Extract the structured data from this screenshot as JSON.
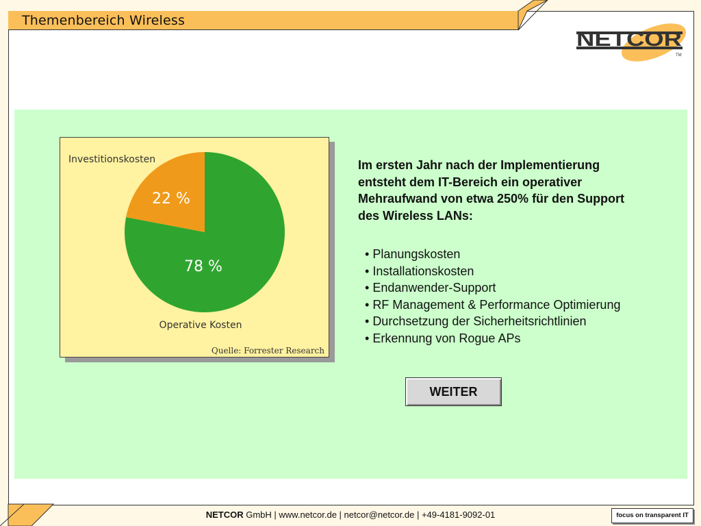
{
  "title": "Themenbereich Wireless",
  "logo": {
    "text": "NETCOR",
    "tm": "TM"
  },
  "chart_data": {
    "type": "pie",
    "slices": [
      {
        "label": "Investitionskosten",
        "value": 22,
        "value_label": "22 %",
        "color": "#ef9a1a"
      },
      {
        "label": "Operative Kosten",
        "value": 78,
        "value_label": "78 %",
        "color": "#2fa52f"
      }
    ],
    "source": "Quelle: Forrester Research"
  },
  "content": {
    "headline": "Im ersten Jahr nach der Implementierung entsteht dem IT-Bereich ein operativer Mehraufwand von etwa 250% für den Support des Wireless LANs:",
    "bullets": [
      "Planungskosten",
      "Installationskosten",
      "Endanwender-Support",
      "RF Management & Performance Optimierung",
      "Durchsetzung der Sicherheitsrichtlinien",
      "Erkennung von Rogue APs"
    ]
  },
  "buttons": {
    "next_label": "WEITER"
  },
  "footer": {
    "company": "NETCOR",
    "rest": " GmbH  | www.netcor.de | netcor@netcor.de | +49-4181-9092-01",
    "badge": "focus on transparent IT"
  },
  "colors": {
    "accent": "#fbbf5a",
    "panel": "#ccffcc",
    "chart_bg": "#fff2a0"
  }
}
